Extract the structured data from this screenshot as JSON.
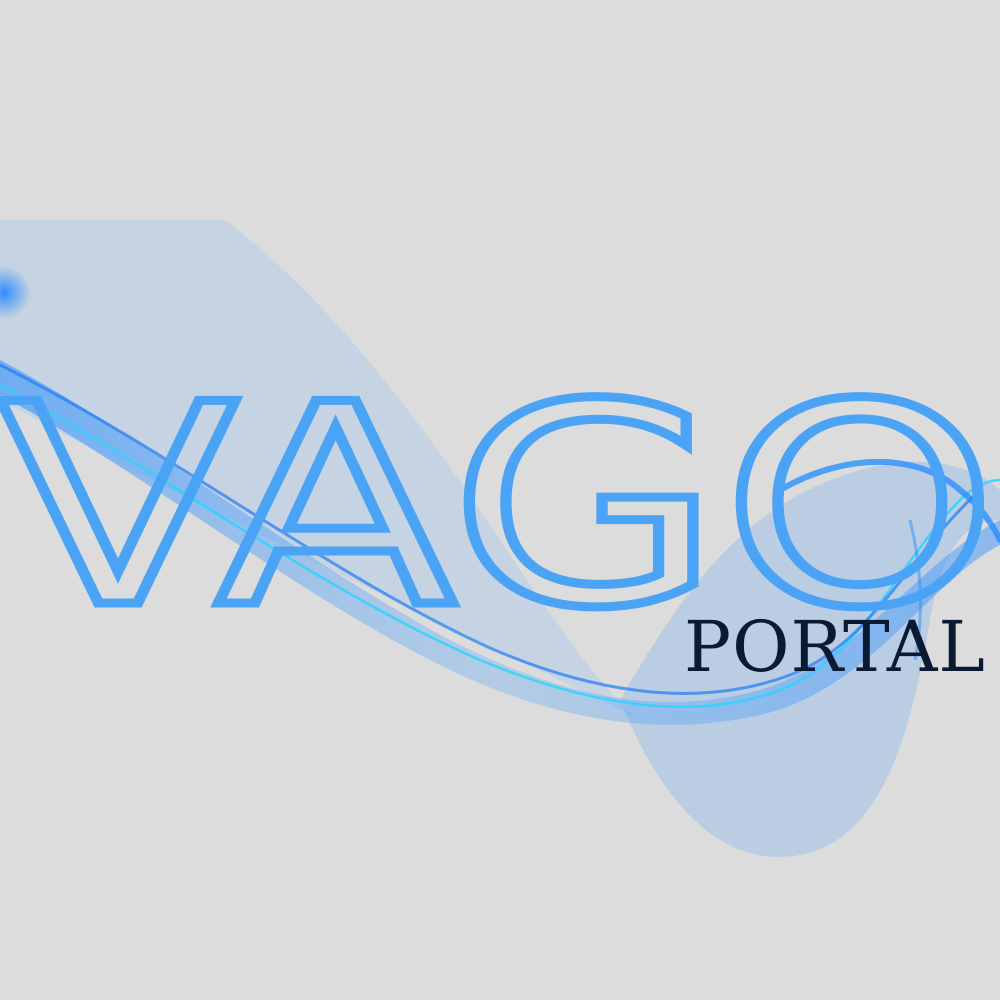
{
  "brand": {
    "name": "VAGO",
    "subtitle": "PORTAL"
  },
  "colors": {
    "background": "#dcdcdc",
    "logo_blue": "#4aa3f5",
    "wave_blue": "#2a8cff",
    "wave_light": "#8fc0f7",
    "subtitle_dark": "#0a1a33"
  }
}
